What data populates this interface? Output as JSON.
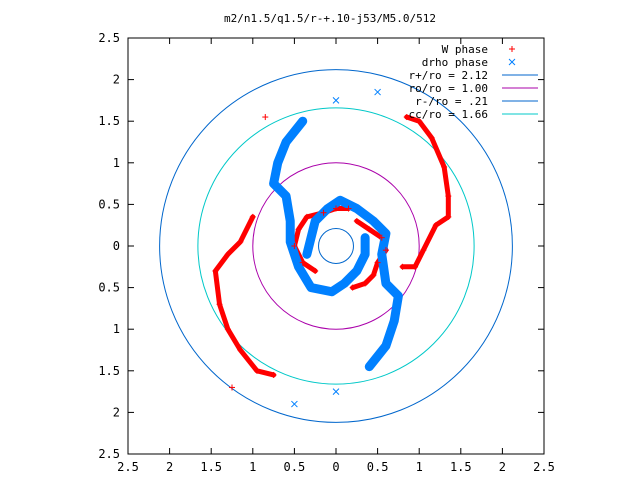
{
  "chart_data": {
    "type": "scatter",
    "title": "m2/n1.5/q1.5/r-+.10-j53/M5.0/512",
    "xlim": [
      -2.5,
      2.5
    ],
    "ylim": [
      -2.5,
      2.5
    ],
    "x_ticks": [
      -2.5,
      -2,
      -1.5,
      -1,
      -0.5,
      0,
      0.5,
      1,
      1.5,
      2,
      2.5
    ],
    "x_tick_labels": [
      "2.5",
      "2",
      "1.5",
      "1",
      "0.5",
      "0",
      "0.5",
      "1",
      "1.5",
      "2",
      "2.5"
    ],
    "y_ticks": [
      2.5,
      2,
      1.5,
      1,
      0.5,
      0,
      -0.5,
      -1,
      -1.5,
      -2,
      -2.5
    ],
    "y_tick_labels": [
      "2.5",
      "2",
      "1.5",
      "1",
      "0.5",
      "0",
      "0.5",
      "1",
      "1.5",
      "2",
      "2.5"
    ],
    "grid": false,
    "legend_position": "top-right",
    "series": [
      {
        "name": "W phase",
        "kind": "points",
        "marker": "plus",
        "color": "#ff0000",
        "points": [
          [
            0.85,
            1.55
          ],
          [
            1.0,
            1.5
          ],
          [
            1.15,
            1.3
          ],
          [
            1.3,
            0.95
          ],
          [
            1.35,
            0.6
          ],
          [
            1.35,
            0.35
          ],
          [
            1.2,
            0.25
          ],
          [
            1.05,
            -0.05
          ],
          [
            0.95,
            -0.25
          ],
          [
            0.8,
            -0.25
          ],
          [
            -0.85,
            1.55
          ],
          [
            -1.0,
            0.35
          ],
          [
            -1.15,
            0.05
          ],
          [
            -1.3,
            -0.1
          ],
          [
            -1.45,
            -0.3
          ],
          [
            -1.4,
            -0.7
          ],
          [
            -1.3,
            -1.0
          ],
          [
            -1.15,
            -1.25
          ],
          [
            -0.95,
            -1.5
          ],
          [
            -0.75,
            -1.55
          ],
          [
            -1.25,
            -1.7
          ],
          [
            0.25,
            0.3
          ],
          [
            0.4,
            0.2
          ],
          [
            0.55,
            0.1
          ],
          [
            0.6,
            -0.05
          ],
          [
            0.5,
            -0.2
          ],
          [
            0.45,
            -0.35
          ],
          [
            0.35,
            -0.45
          ],
          [
            0.2,
            -0.5
          ],
          [
            -0.25,
            -0.3
          ],
          [
            -0.4,
            -0.2
          ],
          [
            -0.5,
            0.0
          ],
          [
            -0.45,
            0.2
          ],
          [
            -0.35,
            0.35
          ],
          [
            -0.15,
            0.4
          ],
          [
            0.0,
            0.45
          ],
          [
            0.15,
            0.45
          ]
        ]
      },
      {
        "name": "drho phase",
        "kind": "points",
        "marker": "cross",
        "color": "#0080ff",
        "points": [
          [
            0.5,
            1.85
          ],
          [
            0.0,
            1.75
          ],
          [
            -0.4,
            1.5
          ],
          [
            -0.6,
            1.25
          ],
          [
            -0.7,
            1.0
          ],
          [
            -0.75,
            0.75
          ],
          [
            -0.6,
            0.6
          ],
          [
            -0.55,
            0.3
          ],
          [
            -0.55,
            0.05
          ],
          [
            -0.45,
            -0.25
          ],
          [
            -0.3,
            -0.5
          ],
          [
            -0.05,
            -0.55
          ],
          [
            0.1,
            -0.45
          ],
          [
            0.25,
            -0.3
          ],
          [
            0.35,
            -0.1
          ],
          [
            0.35,
            0.1
          ],
          [
            -0.5,
            -1.9
          ],
          [
            0.0,
            -1.75
          ],
          [
            0.4,
            -1.45
          ],
          [
            0.6,
            -1.2
          ],
          [
            0.7,
            -0.9
          ],
          [
            0.75,
            -0.6
          ],
          [
            0.6,
            -0.45
          ],
          [
            0.55,
            -0.1
          ],
          [
            0.6,
            0.15
          ],
          [
            0.45,
            0.3
          ],
          [
            0.25,
            0.45
          ],
          [
            0.05,
            0.55
          ],
          [
            -0.1,
            0.45
          ],
          [
            -0.25,
            0.3
          ],
          [
            -0.3,
            0.1
          ],
          [
            -0.35,
            -0.1
          ]
        ]
      },
      {
        "name": "r+/ro = 2.12",
        "kind": "circle",
        "radius": 2.12,
        "color": "#0066cc"
      },
      {
        "name": "ro/ro = 1.00",
        "kind": "circle",
        "radius": 1.0,
        "color": "#aa00aa"
      },
      {
        "name": "r-/ro = .21",
        "kind": "circle",
        "radius": 0.21,
        "color": "#0066cc"
      },
      {
        "name": "cc/ro = 1.66",
        "kind": "circle",
        "radius": 1.66,
        "color": "#00c8c8"
      }
    ]
  }
}
